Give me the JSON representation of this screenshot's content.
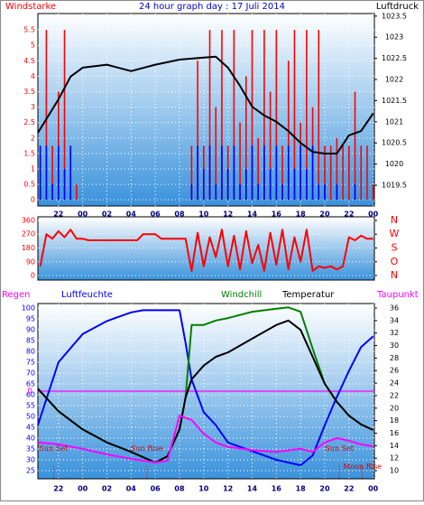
{
  "chart_data": [
    {
      "type": "bar",
      "title": "24 hour graph day : 17 Juli 2014",
      "x": [
        0.5,
        1,
        1.5,
        2,
        2.5,
        3,
        3.5,
        4,
        4.5,
        5,
        5.5,
        6,
        6.5,
        7,
        7.5,
        8,
        8.5,
        9,
        9.5,
        10,
        10.5,
        11,
        11.5,
        12,
        12.5,
        13,
        13.5,
        14,
        14.5,
        15,
        15.5,
        16,
        16.5,
        17,
        17.5,
        18,
        18.5,
        19,
        19.5,
        20,
        20.5,
        21,
        21.5,
        22,
        22.5,
        23,
        23.5,
        24,
        24.5,
        25,
        25.5,
        26,
        26.5,
        27,
        27.5,
        28
      ],
      "xlim": [
        0.3,
        28.1
      ],
      "xticks": [
        {
          "value": 2,
          "label": "22"
        },
        {
          "value": 4,
          "label": "00"
        },
        {
          "value": 6,
          "label": "02"
        },
        {
          "value": 8,
          "label": "04"
        },
        {
          "value": 10,
          "label": "06"
        },
        {
          "value": 12,
          "label": "08"
        },
        {
          "value": 14,
          "label": "10"
        },
        {
          "value": 16,
          "label": "12"
        },
        {
          "value": 18,
          "label": "14"
        },
        {
          "value": 20,
          "label": "16"
        },
        {
          "value": 22,
          "label": "18"
        },
        {
          "value": 24,
          "label": "20"
        },
        {
          "value": 26,
          "label": "22"
        },
        {
          "value": 28,
          "label": "00"
        }
      ],
      "ylim": [
        -0.2,
        6.03
      ],
      "yticks": [
        0,
        0.5,
        1,
        1.5,
        2,
        2.5,
        3,
        3.5,
        4,
        4.5,
        5,
        5.5
      ],
      "y2lim": [
        1019.01,
        1023.56
      ],
      "y2ticks": [
        1019.5,
        1020,
        1020.5,
        1021,
        1021.5,
        1022,
        1022.5,
        1023,
        1023.5
      ],
      "grid": true,
      "series": [
        {
          "name": "Windstarke",
          "color": "#ff0000",
          "type": "bar",
          "values": [
            1.75,
            5.5,
            1.75,
            3.5,
            5.5,
            1.75,
            0.5,
            0,
            0,
            0,
            0,
            0,
            0,
            0,
            0,
            0,
            0,
            0,
            0,
            0,
            0,
            0,
            0,
            0,
            0,
            1.75,
            4.5,
            1.75,
            5.5,
            3,
            5.5,
            1.75,
            5.5,
            2.5,
            4,
            5.5,
            2,
            5.5,
            3.5,
            5.5,
            1.75,
            4.5,
            5.5,
            2.5,
            5.5,
            3,
            5.5,
            1.75,
            1.75,
            2,
            1.75,
            1.75,
            3.5,
            1.75,
            1.75,
            0.5
          ]
        },
        {
          "color": "#0000ff",
          "type": "bar",
          "values": [
            1.75,
            1.75,
            0.5,
            1.75,
            1,
            1.75,
            0,
            0,
            0,
            0,
            0,
            0,
            0,
            0,
            0,
            0,
            0,
            0,
            0,
            0,
            0,
            0,
            0,
            0,
            0,
            0.5,
            1.75,
            1,
            1.75,
            0.5,
            1.75,
            1,
            1.75,
            0.5,
            1,
            1.75,
            0.5,
            1.75,
            1,
            1.75,
            0.5,
            1.75,
            1,
            1.75,
            1,
            1.75,
            0.5,
            0.5,
            0,
            0.5,
            0,
            0,
            0.5,
            0,
            0,
            0
          ]
        },
        {
          "name": "Luftdruck",
          "color": "#000000",
          "type": "line",
          "axis": "y2",
          "x": [
            0.3,
            2,
            3,
            4,
            6,
            8,
            10,
            12,
            14,
            15,
            16,
            17,
            18,
            19,
            20,
            21,
            22,
            23,
            24,
            25,
            26,
            27,
            28
          ],
          "values": [
            1020.74,
            1021.53,
            1022.07,
            1022.28,
            1022.35,
            1022.2,
            1022.35,
            1022.47,
            1022.52,
            1022.54,
            1022.28,
            1021.85,
            1021.36,
            1021.15,
            1021.0,
            1020.78,
            1020.5,
            1020.29,
            1020.25,
            1020.25,
            1020.68,
            1020.78,
            1021.2
          ]
        }
      ]
    },
    {
      "type": "line",
      "x": [
        0.5,
        1,
        1.5,
        2,
        2.5,
        3,
        3.5,
        4,
        4.5,
        5,
        5.5,
        6,
        6.5,
        7,
        7.5,
        8,
        8.5,
        9,
        9.5,
        10,
        10.5,
        11,
        11.5,
        12,
        12.5,
        13,
        13.5,
        14,
        14.5,
        15,
        15.5,
        16,
        16.5,
        17,
        17.5,
        18,
        18.5,
        19,
        19.5,
        20,
        20.5,
        21,
        21.5,
        22,
        22.5,
        23,
        23.5,
        24,
        24.5,
        25,
        25.5,
        26,
        26.5,
        27,
        27.5,
        28
      ],
      "xlim": [
        0.3,
        28.1
      ],
      "ylim": [
        -29.5,
        383.6
      ],
      "yticks": [
        0,
        90,
        180,
        270,
        360
      ],
      "y2ticks": [
        {
          "value": 360,
          "label": "N"
        },
        {
          "value": 270,
          "label": "W"
        },
        {
          "value": 180,
          "label": "S"
        },
        {
          "value": 90,
          "label": "O"
        },
        {
          "value": 0,
          "label": "N"
        }
      ],
      "grid": true,
      "series": [
        {
          "color": "#ff0000",
          "values": [
            60,
            270,
            240,
            290,
            250,
            300,
            240,
            240,
            230,
            230,
            230,
            230,
            230,
            230,
            230,
            230,
            230,
            270,
            270,
            270,
            240,
            240,
            240,
            240,
            240,
            30,
            280,
            60,
            250,
            120,
            300,
            60,
            260,
            40,
            290,
            80,
            200,
            30,
            280,
            70,
            300,
            40,
            250,
            90,
            300,
            30,
            60,
            50,
            60,
            40,
            60,
            250,
            230,
            260,
            240,
            240
          ]
        }
      ]
    },
    {
      "type": "line",
      "xlim": [
        0.3,
        28.1
      ],
      "xticks": [
        {
          "value": 2,
          "label": "22"
        },
        {
          "value": 4,
          "label": "00"
        },
        {
          "value": 6,
          "label": "02"
        },
        {
          "value": 8,
          "label": "04"
        },
        {
          "value": 10,
          "label": "06"
        },
        {
          "value": 12,
          "label": "08"
        },
        {
          "value": 14,
          "label": "10"
        },
        {
          "value": 16,
          "label": "12"
        },
        {
          "value": 18,
          "label": "14"
        },
        {
          "value": 20,
          "label": "16"
        },
        {
          "value": 22,
          "label": "18"
        },
        {
          "value": 24,
          "label": "20"
        },
        {
          "value": 26,
          "label": "22"
        },
        {
          "value": 28,
          "label": "00"
        }
      ],
      "ylim": [
        21.25,
        102.08
      ],
      "yticks": [
        25,
        30,
        35,
        40,
        45,
        50,
        55,
        60,
        65,
        70,
        75,
        80,
        85,
        90,
        95,
        100
      ],
      "y2lim": [
        8.7,
        36.72
      ],
      "y2ticks": [
        10,
        12,
        14,
        16,
        18,
        20,
        22,
        24,
        26,
        28,
        30,
        32,
        34,
        36
      ],
      "y3lim": [
        -1,
        1
      ],
      "y3ticks": [
        0
      ],
      "grid": true,
      "series": [
        {
          "name": "Regen",
          "color": "#ff00ff",
          "axis": "y3",
          "x": [
            0.3,
            28.1
          ],
          "values": [
            0,
            0
          ]
        },
        {
          "name": "Luftfeuchte",
          "color": "#0000ff",
          "x": [
            0.3,
            2,
            4,
            6,
            8,
            9,
            12,
            12.5,
            13,
            14,
            15,
            16,
            18,
            20,
            22,
            23,
            24,
            25,
            26,
            27,
            28
          ],
          "values": [
            46,
            75,
            88,
            94,
            98,
            99,
            99,
            84,
            67,
            52,
            46,
            38,
            34,
            30,
            27.5,
            32,
            46,
            59,
            71,
            82,
            87
          ]
        },
        {
          "name": "Windchill",
          "color": "#008000",
          "axis": "y2",
          "x": [
            0.3,
            2,
            4,
            6,
            8,
            10,
            11,
            12,
            12.5,
            13,
            14,
            15,
            16,
            18,
            20,
            21,
            22,
            23,
            24,
            25,
            26,
            27,
            28
          ],
          "values": [
            23.1,
            19.5,
            16.6,
            14.5,
            13,
            11.3,
            12.3,
            16.6,
            21.7,
            33.3,
            33.3,
            34,
            34.4,
            35.4,
            35.9,
            36.1,
            35.4,
            29.5,
            23.9,
            21,
            18.8,
            17.4,
            16.5
          ]
        },
        {
          "name": "Temperatur",
          "color": "#000000",
          "axis": "y2",
          "x": [
            0.3,
            2,
            4,
            6,
            8,
            10,
            11,
            12,
            12.5,
            13,
            14,
            15,
            16,
            18,
            20,
            21,
            22,
            23,
            24,
            25,
            26,
            27,
            28
          ],
          "values": [
            23.1,
            19.5,
            16.6,
            14.5,
            13,
            11.3,
            12.3,
            16.6,
            21.7,
            24.6,
            26.8,
            28.2,
            28.9,
            31.1,
            33.3,
            34,
            32.5,
            28.2,
            23.9,
            21,
            18.8,
            17.4,
            16.5
          ]
        },
        {
          "name": "Taupunkt",
          "color": "#ff00ff",
          "axis": "y2",
          "x": [
            0.3,
            2,
            4,
            6,
            8,
            10,
            11,
            12,
            13,
            14,
            15,
            16,
            18,
            20,
            22,
            23,
            24,
            25,
            26,
            27,
            28
          ],
          "values": [
            14.5,
            14.2,
            13.5,
            12.6,
            11.9,
            11.3,
            11.6,
            18.8,
            18.1,
            15.9,
            14.5,
            13.8,
            13.3,
            13,
            13.5,
            13,
            14.5,
            15.2,
            14.8,
            14.2,
            13.9
          ]
        }
      ],
      "annotations": [
        {
          "text": "Sun Set",
          "x": 1.6
        },
        {
          "text": "Sun Rise",
          "x": 9.3
        },
        {
          "text": "Sun Set",
          "x": 25.2
        },
        {
          "text": "Moon Rise",
          "x": 27.1
        }
      ]
    }
  ]
}
